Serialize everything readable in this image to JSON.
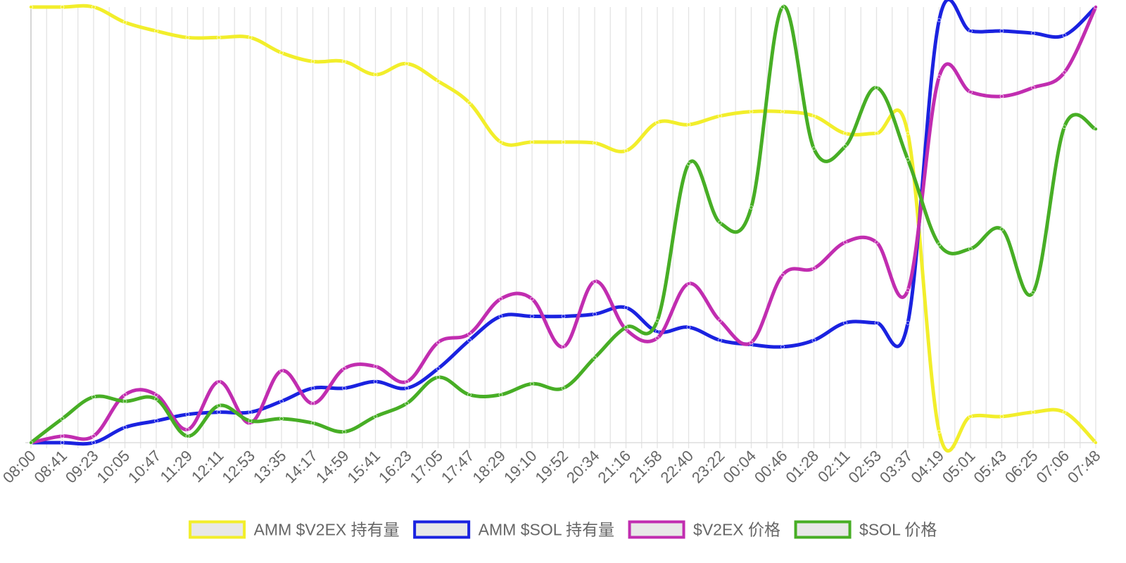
{
  "chart_data": {
    "type": "line",
    "title": "",
    "xlabel": "",
    "ylabel": "",
    "grid": true,
    "legend_position": "bottom",
    "y_axis_labels_shown": false,
    "ylim": [
      0,
      100
    ],
    "categories": [
      "08:00",
      "08:41",
      "09:23",
      "10:05",
      "10:47",
      "11:29",
      "12:11",
      "12:53",
      "13:35",
      "14:17",
      "14:59",
      "15:41",
      "16:23",
      "17:05",
      "17:47",
      "18:29",
      "19:10",
      "19:52",
      "20:34",
      "21:16",
      "21:58",
      "22:40",
      "23:22",
      "00:04",
      "00:46",
      "01:28",
      "02:11",
      "02:53",
      "03:37",
      "04:19",
      "05:01",
      "05:43",
      "06:25",
      "07:06",
      "07:48"
    ],
    "series": [
      {
        "name": "AMM $V2EX 持有量",
        "color": "#f2ee2b",
        "values": [
          100,
          100,
          100,
          96.5,
          94.5,
          93,
          93,
          93,
          89.5,
          87.5,
          87.5,
          84.5,
          87,
          83,
          78,
          69,
          69,
          69,
          68.8,
          67,
          73.5,
          73,
          75,
          76,
          76,
          75,
          71,
          71,
          71,
          2.5,
          6,
          6,
          7,
          7,
          0
        ]
      },
      {
        "name": "AMM $SOL 持有量",
        "color": "#1a22e0",
        "values": [
          0,
          0,
          0,
          3.5,
          5,
          6.5,
          7,
          7,
          9.5,
          12.5,
          12.5,
          14,
          12.5,
          17,
          23.5,
          29,
          29,
          29,
          29.5,
          31,
          25.5,
          26.5,
          23.5,
          22.5,
          22,
          23.5,
          27.5,
          27.5,
          27.5,
          97,
          94.5,
          94.5,
          94,
          93.5,
          100
        ]
      },
      {
        "name": "$V2EX 价格",
        "color": "#c12db0",
        "values": [
          0,
          1.5,
          1.5,
          11,
          11,
          3,
          14,
          4.5,
          16.5,
          9,
          17,
          17.5,
          14,
          23,
          25,
          33,
          33,
          22,
          37,
          26,
          24,
          36.5,
          28,
          23,
          38.5,
          40,
          46,
          46,
          35,
          84,
          80.5,
          79.5,
          81.5,
          85,
          100
        ]
      },
      {
        "name": "$SOL 价格",
        "color": "#47ae25",
        "values": [
          0,
          5.5,
          10.5,
          9.5,
          10,
          1.5,
          8.5,
          5,
          5.5,
          4.5,
          2.5,
          6,
          9,
          15,
          11,
          11,
          13.5,
          12.5,
          19.5,
          26.5,
          28,
          64,
          50.5,
          54,
          100,
          67.5,
          68,
          81.5,
          65,
          45.5,
          44.5,
          49,
          34.5,
          72.5,
          72
        ]
      }
    ]
  }
}
